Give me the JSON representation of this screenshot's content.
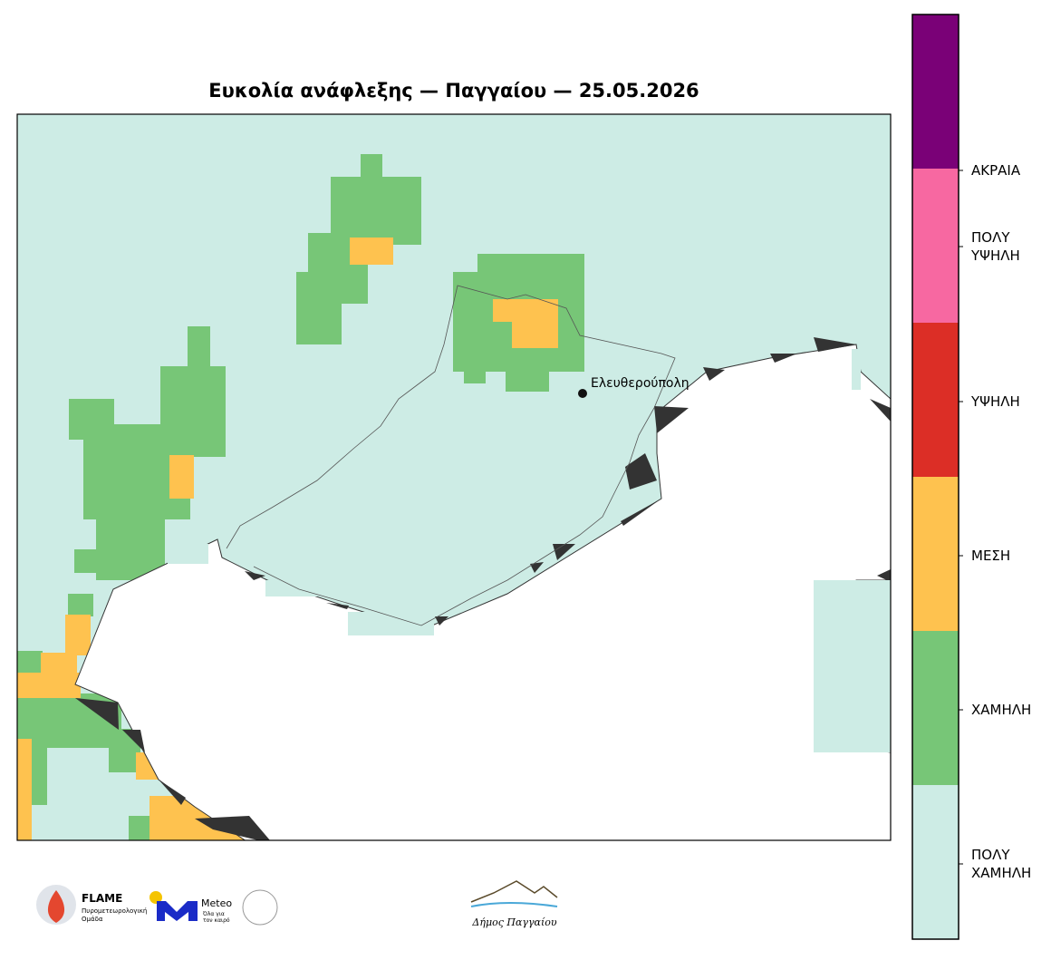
{
  "title": "Ευκολία ανάφλεξης — Παγγαίου — 25.05.2026",
  "map": {
    "places": [
      {
        "name": "Ελευθερούπολη"
      }
    ]
  },
  "legend": {
    "classes": [
      {
        "label": [
          "ΠΟΛΥ",
          "ΧΑΜΗΛΗ"
        ],
        "color": "#cdece5"
      },
      {
        "label": [
          "ΧΑΜΗΛΗ"
        ],
        "color": "#77c677"
      },
      {
        "label": [
          "ΜΕΣΗ"
        ],
        "color": "#fec24f"
      },
      {
        "label": [
          "ΥΨΗΛΗ"
        ],
        "color": "#dc2e26"
      },
      {
        "label": [
          "ΠΟΛΥ",
          "ΥΨΗΛΗ"
        ],
        "color": "#f768a1"
      },
      {
        "label": [
          "ΑΚΡΑΙΑ"
        ],
        "color": "#7a0177"
      }
    ]
  },
  "logos": {
    "flame": {
      "name": "FLAME",
      "subtitle": [
        "Πυρομετεωρολογική",
        "Ομάδα"
      ]
    },
    "meteo": {
      "name": "Meteo",
      "slogan": [
        "Όλα για",
        "τον καιρό"
      ]
    },
    "municipality": "Δήμος Παγγαίου"
  }
}
